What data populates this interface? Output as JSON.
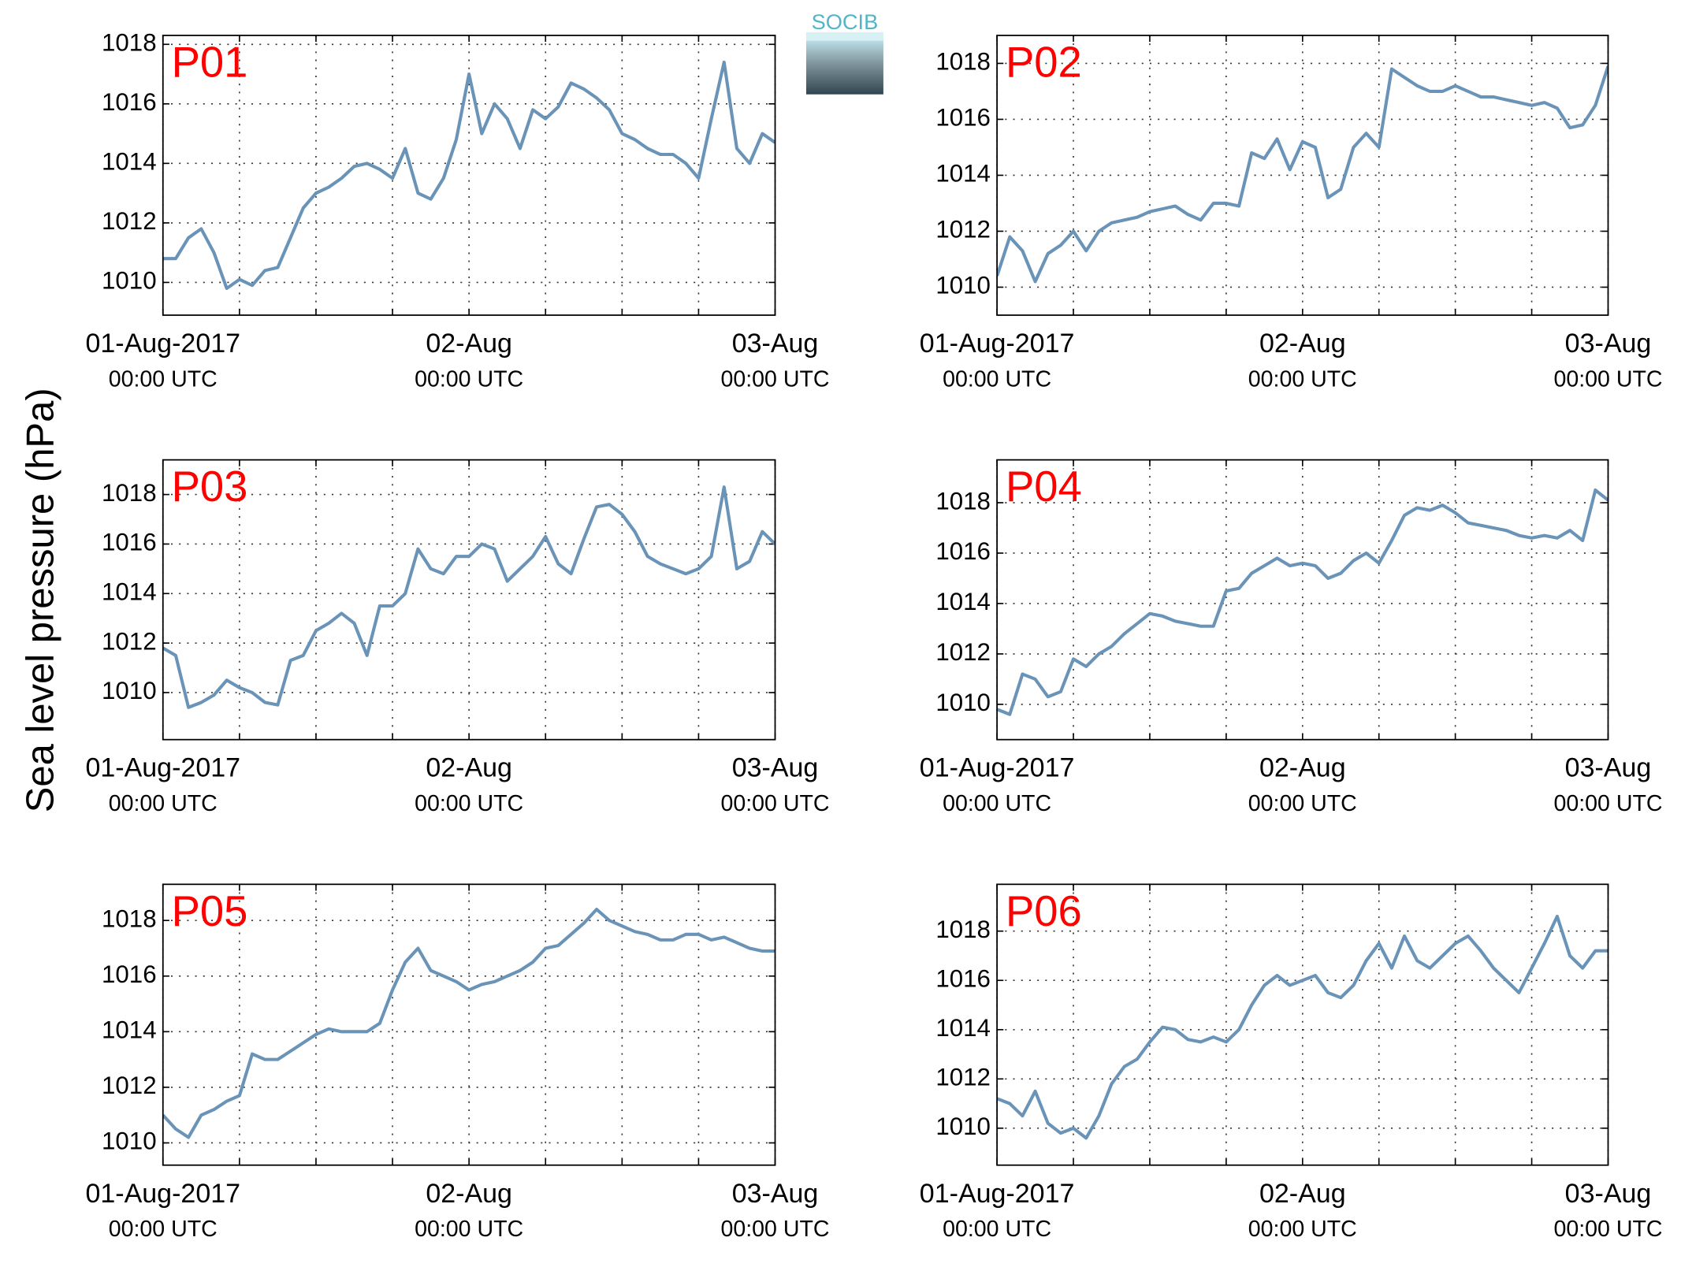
{
  "ylabel": "Sea level pressure (hPa)",
  "logo": "SOCIB",
  "chart_data": [
    {
      "type": "line",
      "title": "P01",
      "color": "#6a93b8",
      "x": [
        "2017-08-01T00:00Z",
        "2017-08-01T01:00Z",
        "2017-08-01T02:00Z",
        "2017-08-01T03:00Z",
        "2017-08-01T04:00Z",
        "2017-08-01T05:00Z",
        "2017-08-01T06:00Z",
        "2017-08-01T07:00Z",
        "2017-08-01T08:00Z",
        "2017-08-01T09:00Z",
        "2017-08-01T10:00Z",
        "2017-08-01T11:00Z",
        "2017-08-01T12:00Z",
        "2017-08-01T13:00Z",
        "2017-08-01T14:00Z",
        "2017-08-01T15:00Z",
        "2017-08-01T16:00Z",
        "2017-08-01T17:00Z",
        "2017-08-01T18:00Z",
        "2017-08-01T19:00Z",
        "2017-08-01T20:00Z",
        "2017-08-01T21:00Z",
        "2017-08-01T22:00Z",
        "2017-08-01T23:00Z",
        "2017-08-02T00:00Z",
        "2017-08-02T01:00Z",
        "2017-08-02T02:00Z",
        "2017-08-02T03:00Z",
        "2017-08-02T04:00Z",
        "2017-08-02T05:00Z",
        "2017-08-02T06:00Z",
        "2017-08-02T07:00Z",
        "2017-08-02T08:00Z",
        "2017-08-02T09:00Z",
        "2017-08-02T10:00Z",
        "2017-08-02T11:00Z",
        "2017-08-02T12:00Z",
        "2017-08-02T13:00Z",
        "2017-08-02T14:00Z",
        "2017-08-02T15:00Z",
        "2017-08-02T16:00Z",
        "2017-08-02T17:00Z",
        "2017-08-02T18:00Z",
        "2017-08-02T19:00Z",
        "2017-08-02T20:00Z",
        "2017-08-02T21:00Z",
        "2017-08-02T22:00Z",
        "2017-08-02T23:00Z",
        "2017-08-03T00:00Z"
      ],
      "values": [
        1010.8,
        1010.8,
        1011.5,
        1011.8,
        1011.0,
        1009.8,
        1010.1,
        1009.9,
        1010.4,
        1010.5,
        1011.5,
        1012.5,
        1013.0,
        1013.2,
        1013.5,
        1013.9,
        1014.0,
        1013.8,
        1013.5,
        1014.5,
        1013.0,
        1012.8,
        1013.5,
        1014.8,
        1017.0,
        1015.0,
        1016.0,
        1015.5,
        1014.5,
        1015.8,
        1015.5,
        1015.9,
        1016.7,
        1016.5,
        1016.2,
        1015.8,
        1015.0,
        1014.8,
        1014.5,
        1014.3,
        1014.3,
        1014.0,
        1013.5,
        1015.5,
        1017.4,
        1014.5,
        1014.0,
        1015.0,
        1014.7
      ],
      "xlim": [
        "2017-08-01T00:00Z",
        "2017-08-03T00:00Z"
      ],
      "ylim": [
        1008.9,
        1018.3
      ],
      "yticks": [
        1010,
        1012,
        1014,
        1016,
        1018
      ],
      "xticks": [
        {
          "value": "2017-08-01T00:00Z",
          "label": "01-Aug-2017",
          "sublabel": "00:00 UTC"
        },
        "2017-08-01T06:00Z",
        "2017-08-01T12:00Z",
        "2017-08-01T18:00Z",
        {
          "value": "2017-08-02T00:00Z",
          "label": "02-Aug",
          "sublabel": "00:00 UTC"
        },
        "2017-08-02T06:00Z",
        "2017-08-02T12:00Z",
        "2017-08-02T18:00Z",
        {
          "value": "2017-08-03T00:00Z",
          "label": "03-Aug",
          "sublabel": "00:00 UTC"
        }
      ],
      "grid": true
    },
    {
      "type": "line",
      "title": "P02",
      "color": "#6a93b8",
      "x": [
        "2017-08-01T00:00Z",
        "2017-08-01T01:00Z",
        "2017-08-01T02:00Z",
        "2017-08-01T03:00Z",
        "2017-08-01T04:00Z",
        "2017-08-01T05:00Z",
        "2017-08-01T06:00Z",
        "2017-08-01T07:00Z",
        "2017-08-01T08:00Z",
        "2017-08-01T09:00Z",
        "2017-08-01T10:00Z",
        "2017-08-01T11:00Z",
        "2017-08-01T12:00Z",
        "2017-08-01T13:00Z",
        "2017-08-01T14:00Z",
        "2017-08-01T15:00Z",
        "2017-08-01T16:00Z",
        "2017-08-01T17:00Z",
        "2017-08-01T18:00Z",
        "2017-08-01T19:00Z",
        "2017-08-01T20:00Z",
        "2017-08-01T21:00Z",
        "2017-08-01T22:00Z",
        "2017-08-01T23:00Z",
        "2017-08-02T00:00Z",
        "2017-08-02T01:00Z",
        "2017-08-02T02:00Z",
        "2017-08-02T03:00Z",
        "2017-08-02T04:00Z",
        "2017-08-02T05:00Z",
        "2017-08-02T06:00Z",
        "2017-08-02T07:00Z",
        "2017-08-02T08:00Z",
        "2017-08-02T09:00Z",
        "2017-08-02T10:00Z",
        "2017-08-02T11:00Z",
        "2017-08-02T12:00Z",
        "2017-08-02T13:00Z",
        "2017-08-02T14:00Z",
        "2017-08-02T15:00Z",
        "2017-08-02T16:00Z",
        "2017-08-02T17:00Z",
        "2017-08-02T18:00Z",
        "2017-08-02T19:00Z",
        "2017-08-02T20:00Z",
        "2017-08-02T21:00Z",
        "2017-08-02T22:00Z",
        "2017-08-02T23:00Z",
        "2017-08-03T00:00Z"
      ],
      "values": [
        1010.4,
        1011.8,
        1011.3,
        1010.2,
        1011.2,
        1011.5,
        1012.0,
        1011.3,
        1012.0,
        1012.3,
        1012.4,
        1012.5,
        1012.7,
        1012.8,
        1012.9,
        1012.6,
        1012.4,
        1013.0,
        1013.0,
        1012.9,
        1014.8,
        1014.6,
        1015.3,
        1014.2,
        1015.2,
        1015.0,
        1013.2,
        1013.5,
        1015.0,
        1015.5,
        1015.0,
        1017.8,
        1017.5,
        1017.2,
        1017.0,
        1017.0,
        1017.2,
        1017.0,
        1016.8,
        1016.8,
        1016.7,
        1016.6,
        1016.5,
        1016.6,
        1016.4,
        1015.7,
        1015.8,
        1016.5,
        1017.9
      ],
      "xlim": [
        "2017-08-01T00:00Z",
        "2017-08-03T00:00Z"
      ],
      "ylim": [
        1009,
        1019
      ],
      "yticks": [
        1010,
        1012,
        1014,
        1016,
        1018
      ],
      "xticks": [
        {
          "value": "2017-08-01T00:00Z",
          "label": "01-Aug-2017",
          "sublabel": "00:00 UTC"
        },
        "2017-08-01T06:00Z",
        "2017-08-01T12:00Z",
        "2017-08-01T18:00Z",
        {
          "value": "2017-08-02T00:00Z",
          "label": "02-Aug",
          "sublabel": "00:00 UTC"
        },
        "2017-08-02T06:00Z",
        "2017-08-02T12:00Z",
        "2017-08-02T18:00Z",
        {
          "value": "2017-08-03T00:00Z",
          "label": "03-Aug",
          "sublabel": "00:00 UTC"
        }
      ],
      "grid": true
    },
    {
      "type": "line",
      "title": "P03",
      "color": "#6a93b8",
      "x": [
        "2017-08-01T00:00Z",
        "2017-08-01T01:00Z",
        "2017-08-01T02:00Z",
        "2017-08-01T03:00Z",
        "2017-08-01T04:00Z",
        "2017-08-01T05:00Z",
        "2017-08-01T06:00Z",
        "2017-08-01T07:00Z",
        "2017-08-01T08:00Z",
        "2017-08-01T09:00Z",
        "2017-08-01T10:00Z",
        "2017-08-01T11:00Z",
        "2017-08-01T12:00Z",
        "2017-08-01T13:00Z",
        "2017-08-01T14:00Z",
        "2017-08-01T15:00Z",
        "2017-08-01T16:00Z",
        "2017-08-01T17:00Z",
        "2017-08-01T18:00Z",
        "2017-08-01T19:00Z",
        "2017-08-01T20:00Z",
        "2017-08-01T21:00Z",
        "2017-08-01T22:00Z",
        "2017-08-01T23:00Z",
        "2017-08-02T00:00Z",
        "2017-08-02T01:00Z",
        "2017-08-02T02:00Z",
        "2017-08-02T03:00Z",
        "2017-08-02T04:00Z",
        "2017-08-02T05:00Z",
        "2017-08-02T06:00Z",
        "2017-08-02T07:00Z",
        "2017-08-02T08:00Z",
        "2017-08-02T09:00Z",
        "2017-08-02T10:00Z",
        "2017-08-02T11:00Z",
        "2017-08-02T12:00Z",
        "2017-08-02T13:00Z",
        "2017-08-02T14:00Z",
        "2017-08-02T15:00Z",
        "2017-08-02T16:00Z",
        "2017-08-02T17:00Z",
        "2017-08-02T18:00Z",
        "2017-08-02T19:00Z",
        "2017-08-02T20:00Z",
        "2017-08-02T21:00Z",
        "2017-08-02T22:00Z",
        "2017-08-02T23:00Z",
        "2017-08-03T00:00Z"
      ],
      "values": [
        1011.8,
        1011.5,
        1009.4,
        1009.6,
        1009.9,
        1010.5,
        1010.2,
        1010.0,
        1009.6,
        1009.5,
        1011.3,
        1011.5,
        1012.5,
        1012.8,
        1013.2,
        1012.8,
        1011.5,
        1013.5,
        1013.5,
        1014.0,
        1015.8,
        1015.0,
        1014.8,
        1015.5,
        1015.5,
        1016.0,
        1015.8,
        1014.5,
        1015.0,
        1015.5,
        1016.3,
        1015.2,
        1014.8,
        1016.2,
        1017.5,
        1017.6,
        1017.2,
        1016.5,
        1015.5,
        1015.2,
        1015.0,
        1014.8,
        1015.0,
        1015.5,
        1018.3,
        1015.0,
        1015.3,
        1016.5,
        1016.0
      ],
      "xlim": [
        "2017-08-01T00:00Z",
        "2017-08-03T00:00Z"
      ],
      "ylim": [
        1008.1,
        1019.4
      ],
      "yticks": [
        1010,
        1012,
        1014,
        1016,
        1018
      ],
      "xticks": [
        {
          "value": "2017-08-01T00:00Z",
          "label": "01-Aug-2017",
          "sublabel": "00:00 UTC"
        },
        "2017-08-01T06:00Z",
        "2017-08-01T12:00Z",
        "2017-08-01T18:00Z",
        {
          "value": "2017-08-02T00:00Z",
          "label": "02-Aug",
          "sublabel": "00:00 UTC"
        },
        "2017-08-02T06:00Z",
        "2017-08-02T12:00Z",
        "2017-08-02T18:00Z",
        {
          "value": "2017-08-03T00:00Z",
          "label": "03-Aug",
          "sublabel": "00:00 UTC"
        }
      ],
      "grid": true
    },
    {
      "type": "line",
      "title": "P04",
      "color": "#6a93b8",
      "x": [
        "2017-08-01T00:00Z",
        "2017-08-01T01:00Z",
        "2017-08-01T02:00Z",
        "2017-08-01T03:00Z",
        "2017-08-01T04:00Z",
        "2017-08-01T05:00Z",
        "2017-08-01T06:00Z",
        "2017-08-01T07:00Z",
        "2017-08-01T08:00Z",
        "2017-08-01T09:00Z",
        "2017-08-01T10:00Z",
        "2017-08-01T11:00Z",
        "2017-08-01T12:00Z",
        "2017-08-01T13:00Z",
        "2017-08-01T14:00Z",
        "2017-08-01T15:00Z",
        "2017-08-01T16:00Z",
        "2017-08-01T17:00Z",
        "2017-08-01T18:00Z",
        "2017-08-01T19:00Z",
        "2017-08-01T20:00Z",
        "2017-08-01T21:00Z",
        "2017-08-01T22:00Z",
        "2017-08-01T23:00Z",
        "2017-08-02T00:00Z",
        "2017-08-02T01:00Z",
        "2017-08-02T02:00Z",
        "2017-08-02T03:00Z",
        "2017-08-02T04:00Z",
        "2017-08-02T05:00Z",
        "2017-08-02T06:00Z",
        "2017-08-02T07:00Z",
        "2017-08-02T08:00Z",
        "2017-08-02T09:00Z",
        "2017-08-02T10:00Z",
        "2017-08-02T11:00Z",
        "2017-08-02T12:00Z",
        "2017-08-02T13:00Z",
        "2017-08-02T14:00Z",
        "2017-08-02T15:00Z",
        "2017-08-02T16:00Z",
        "2017-08-02T17:00Z",
        "2017-08-02T18:00Z",
        "2017-08-02T19:00Z",
        "2017-08-02T20:00Z",
        "2017-08-02T21:00Z",
        "2017-08-02T22:00Z",
        "2017-08-02T23:00Z",
        "2017-08-03T00:00Z"
      ],
      "values": [
        1009.8,
        1009.6,
        1011.2,
        1011.0,
        1010.3,
        1010.5,
        1011.8,
        1011.5,
        1012.0,
        1012.3,
        1012.8,
        1013.2,
        1013.6,
        1013.5,
        1013.3,
        1013.2,
        1013.1,
        1013.1,
        1014.5,
        1014.6,
        1015.2,
        1015.5,
        1015.8,
        1015.5,
        1015.6,
        1015.5,
        1015.0,
        1015.2,
        1015.7,
        1016.0,
        1015.6,
        1016.5,
        1017.5,
        1017.8,
        1017.7,
        1017.9,
        1017.6,
        1017.2,
        1017.1,
        1017.0,
        1016.9,
        1016.7,
        1016.6,
        1016.7,
        1016.6,
        1016.9,
        1016.5,
        1018.5,
        1018.1
      ],
      "xlim": [
        "2017-08-01T00:00Z",
        "2017-08-03T00:00Z"
      ],
      "ylim": [
        1008.6,
        1019.7
      ],
      "yticks": [
        1010,
        1012,
        1014,
        1016,
        1018
      ],
      "xticks": [
        {
          "value": "2017-08-01T00:00Z",
          "label": "01-Aug-2017",
          "sublabel": "00:00 UTC"
        },
        "2017-08-01T06:00Z",
        "2017-08-01T12:00Z",
        "2017-08-01T18:00Z",
        {
          "value": "2017-08-02T00:00Z",
          "label": "02-Aug",
          "sublabel": "00:00 UTC"
        },
        "2017-08-02T06:00Z",
        "2017-08-02T12:00Z",
        "2017-08-02T18:00Z",
        {
          "value": "2017-08-03T00:00Z",
          "label": "03-Aug",
          "sublabel": "00:00 UTC"
        }
      ],
      "grid": true
    },
    {
      "type": "line",
      "title": "P05",
      "color": "#6a93b8",
      "x": [
        "2017-08-01T00:00Z",
        "2017-08-01T01:00Z",
        "2017-08-01T02:00Z",
        "2017-08-01T03:00Z",
        "2017-08-01T04:00Z",
        "2017-08-01T05:00Z",
        "2017-08-01T06:00Z",
        "2017-08-01T07:00Z",
        "2017-08-01T08:00Z",
        "2017-08-01T09:00Z",
        "2017-08-01T10:00Z",
        "2017-08-01T11:00Z",
        "2017-08-01T12:00Z",
        "2017-08-01T13:00Z",
        "2017-08-01T14:00Z",
        "2017-08-01T15:00Z",
        "2017-08-01T16:00Z",
        "2017-08-01T17:00Z",
        "2017-08-01T18:00Z",
        "2017-08-01T19:00Z",
        "2017-08-01T20:00Z",
        "2017-08-01T21:00Z",
        "2017-08-01T22:00Z",
        "2017-08-01T23:00Z",
        "2017-08-02T00:00Z",
        "2017-08-02T01:00Z",
        "2017-08-02T02:00Z",
        "2017-08-02T03:00Z",
        "2017-08-02T04:00Z",
        "2017-08-02T05:00Z",
        "2017-08-02T06:00Z",
        "2017-08-02T07:00Z",
        "2017-08-02T08:00Z",
        "2017-08-02T09:00Z",
        "2017-08-02T10:00Z",
        "2017-08-02T11:00Z",
        "2017-08-02T12:00Z",
        "2017-08-02T13:00Z",
        "2017-08-02T14:00Z",
        "2017-08-02T15:00Z",
        "2017-08-02T16:00Z",
        "2017-08-02T17:00Z",
        "2017-08-02T18:00Z",
        "2017-08-02T19:00Z",
        "2017-08-02T20:00Z",
        "2017-08-02T21:00Z",
        "2017-08-02T22:00Z",
        "2017-08-02T23:00Z",
        "2017-08-03T00:00Z"
      ],
      "values": [
        1011.0,
        1010.5,
        1010.2,
        1011.0,
        1011.2,
        1011.5,
        1011.7,
        1013.2,
        1013.0,
        1013.0,
        1013.3,
        1013.6,
        1013.9,
        1014.1,
        1014.0,
        1014.0,
        1014.0,
        1014.3,
        1015.5,
        1016.5,
        1017.0,
        1016.2,
        1016.0,
        1015.8,
        1015.5,
        1015.7,
        1015.8,
        1016.0,
        1016.2,
        1016.5,
        1017.0,
        1017.1,
        1017.5,
        1017.9,
        1018.4,
        1018.0,
        1017.8,
        1017.6,
        1017.5,
        1017.3,
        1017.3,
        1017.5,
        1017.5,
        1017.3,
        1017.4,
        1017.2,
        1017.0,
        1016.9,
        1016.9
      ],
      "xlim": [
        "2017-08-01T00:00Z",
        "2017-08-03T00:00Z"
      ],
      "ylim": [
        1009.2,
        1019.3
      ],
      "yticks": [
        1010,
        1012,
        1014,
        1016,
        1018
      ],
      "xticks": [
        {
          "value": "2017-08-01T00:00Z",
          "label": "01-Aug-2017",
          "sublabel": "00:00 UTC"
        },
        "2017-08-01T06:00Z",
        "2017-08-01T12:00Z",
        "2017-08-01T18:00Z",
        {
          "value": "2017-08-02T00:00Z",
          "label": "02-Aug",
          "sublabel": "00:00 UTC"
        },
        "2017-08-02T06:00Z",
        "2017-08-02T12:00Z",
        "2017-08-02T18:00Z",
        {
          "value": "2017-08-03T00:00Z",
          "label": "03-Aug",
          "sublabel": "00:00 UTC"
        }
      ],
      "grid": true
    },
    {
      "type": "line",
      "title": "P06",
      "color": "#6a93b8",
      "x": [
        "2017-08-01T00:00Z",
        "2017-08-01T01:00Z",
        "2017-08-01T02:00Z",
        "2017-08-01T03:00Z",
        "2017-08-01T04:00Z",
        "2017-08-01T05:00Z",
        "2017-08-01T06:00Z",
        "2017-08-01T07:00Z",
        "2017-08-01T08:00Z",
        "2017-08-01T09:00Z",
        "2017-08-01T10:00Z",
        "2017-08-01T11:00Z",
        "2017-08-01T12:00Z",
        "2017-08-01T13:00Z",
        "2017-08-01T14:00Z",
        "2017-08-01T15:00Z",
        "2017-08-01T16:00Z",
        "2017-08-01T17:00Z",
        "2017-08-01T18:00Z",
        "2017-08-01T19:00Z",
        "2017-08-01T20:00Z",
        "2017-08-01T21:00Z",
        "2017-08-01T22:00Z",
        "2017-08-01T23:00Z",
        "2017-08-02T00:00Z",
        "2017-08-02T01:00Z",
        "2017-08-02T02:00Z",
        "2017-08-02T03:00Z",
        "2017-08-02T04:00Z",
        "2017-08-02T05:00Z",
        "2017-08-02T06:00Z",
        "2017-08-02T07:00Z",
        "2017-08-02T08:00Z",
        "2017-08-02T09:00Z",
        "2017-08-02T10:00Z",
        "2017-08-02T11:00Z",
        "2017-08-02T12:00Z",
        "2017-08-02T13:00Z",
        "2017-08-02T14:00Z",
        "2017-08-02T15:00Z",
        "2017-08-02T16:00Z",
        "2017-08-02T17:00Z",
        "2017-08-02T18:00Z",
        "2017-08-02T19:00Z",
        "2017-08-02T20:00Z",
        "2017-08-02T21:00Z",
        "2017-08-02T22:00Z",
        "2017-08-02T23:00Z",
        "2017-08-03T00:00Z"
      ],
      "values": [
        1011.2,
        1011.0,
        1010.5,
        1011.5,
        1010.2,
        1009.8,
        1010.0,
        1009.6,
        1010.5,
        1011.8,
        1012.5,
        1012.8,
        1013.5,
        1014.1,
        1014.0,
        1013.6,
        1013.5,
        1013.7,
        1013.5,
        1014.0,
        1015.0,
        1015.8,
        1016.2,
        1015.8,
        1016.0,
        1016.2,
        1015.5,
        1015.3,
        1015.8,
        1016.8,
        1017.5,
        1016.5,
        1017.8,
        1016.8,
        1016.5,
        1017.0,
        1017.5,
        1017.8,
        1017.2,
        1016.5,
        1016.0,
        1015.5,
        1016.5,
        1017.5,
        1018.6,
        1017.0,
        1016.5,
        1017.2,
        1017.2
      ],
      "xlim": [
        "2017-08-01T00:00Z",
        "2017-08-03T00:00Z"
      ],
      "ylim": [
        1008.5,
        1019.9
      ],
      "yticks": [
        1010,
        1012,
        1014,
        1016,
        1018
      ],
      "xticks": [
        {
          "value": "2017-08-01T00:00Z",
          "label": "01-Aug-2017",
          "sublabel": "00:00 UTC"
        },
        "2017-08-01T06:00Z",
        "2017-08-01T12:00Z",
        "2017-08-01T18:00Z",
        {
          "value": "2017-08-02T00:00Z",
          "label": "02-Aug",
          "sublabel": "00:00 UTC"
        },
        "2017-08-02T06:00Z",
        "2017-08-02T12:00Z",
        "2017-08-02T18:00Z",
        {
          "value": "2017-08-03T00:00Z",
          "label": "03-Aug",
          "sublabel": "00:00 UTC"
        }
      ],
      "grid": true
    }
  ]
}
